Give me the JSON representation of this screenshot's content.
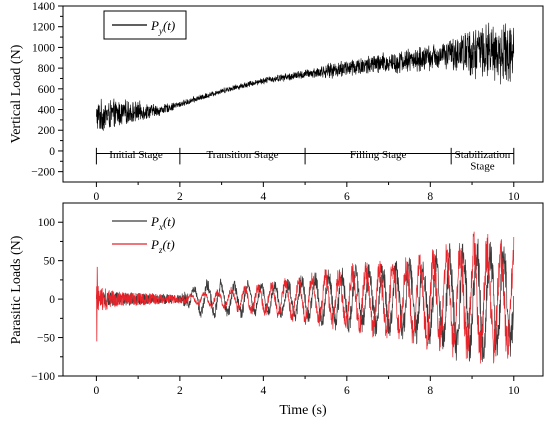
{
  "chart_data": [
    {
      "type": "line",
      "ylabel": "Vertical Load (N)",
      "xlim": [
        -0.8,
        10.7
      ],
      "ylim": [
        -300,
        1400
      ],
      "x_ticks": [
        0,
        2,
        4,
        6,
        8,
        10
      ],
      "y_ticks": [
        -200,
        0,
        200,
        400,
        600,
        800,
        1000,
        1200,
        1400
      ],
      "x_tick_labels": [
        "0",
        "2",
        "4",
        "6",
        "8",
        "10"
      ],
      "y_tick_labels": [
        "−200",
        "0",
        "200",
        "400",
        "600",
        "800",
        "1000",
        "1200",
        "1400"
      ],
      "legend": {
        "placement": "top-left",
        "entries": [
          {
            "base": "P",
            "sub": "y",
            "arg": "(t)",
            "color": "#000000"
          }
        ]
      },
      "stage_boundaries": [
        0,
        2,
        5,
        8.5,
        10
      ],
      "stages": [
        {
          "label": "Initial Stage",
          "x": 0.95,
          "y": -70
        },
        {
          "label": "Transition Stage",
          "x": 3.5,
          "y": -70
        },
        {
          "label": "Filling Stage",
          "x": 6.75,
          "y": -70
        },
        {
          "label": "Stabilization",
          "x": 9.25,
          "y": -70
        },
        {
          "label": "Stage",
          "x": 9.25,
          "y": -180
        }
      ],
      "series": [
        {
          "color": "#000000",
          "x_range": [
            0,
            10
          ],
          "envelope": [
            {
              "x": 0.0,
              "mean": 330,
              "amplitude": 180
            },
            {
              "x": 0.5,
              "mean": 360,
              "amplitude": 150
            },
            {
              "x": 1.0,
              "mean": 380,
              "amplitude": 110
            },
            {
              "x": 1.5,
              "mean": 390,
              "amplitude": 60
            },
            {
              "x": 2.0,
              "mean": 450,
              "amplitude": 35
            },
            {
              "x": 3.0,
              "mean": 580,
              "amplitude": 30
            },
            {
              "x": 4.0,
              "mean": 680,
              "amplitude": 35
            },
            {
              "x": 5.0,
              "mean": 740,
              "amplitude": 50
            },
            {
              "x": 6.0,
              "mean": 800,
              "amplitude": 100
            },
            {
              "x": 7.0,
              "mean": 850,
              "amplitude": 120
            },
            {
              "x": 8.0,
              "mean": 900,
              "amplitude": 140
            },
            {
              "x": 8.5,
              "mean": 940,
              "amplitude": 160
            },
            {
              "x": 9.0,
              "mean": 960,
              "amplitude": 280
            },
            {
              "x": 10.0,
              "mean": 960,
              "amplitude": 340
            }
          ]
        }
      ]
    },
    {
      "type": "line",
      "xlabel": "Time (s)",
      "ylabel": "Parasitic Loads (N)",
      "xlim": [
        -0.8,
        10.7
      ],
      "ylim": [
        -100,
        125
      ],
      "x_ticks": [
        0,
        2,
        4,
        6,
        8,
        10
      ],
      "y_ticks": [
        -100,
        -50,
        0,
        50,
        100
      ],
      "x_tick_labels": [
        "0",
        "2",
        "4",
        "6",
        "8",
        "10"
      ],
      "y_tick_labels": [
        "−100",
        "−50",
        "0",
        "50",
        "100"
      ],
      "legend": {
        "placement": "top-left",
        "entries": [
          {
            "base": "P",
            "sub": "x",
            "arg": "(t)",
            "color": "#3a3a3a"
          },
          {
            "base": "P",
            "sub": "z",
            "arg": "(t)",
            "color": "#e8232a"
          }
        ]
      },
      "series": [
        {
          "color": "#3a3a3a",
          "x_range": [
            0,
            10
          ],
          "envelope": [
            {
              "x": 0.0,
              "amplitude": 10
            },
            {
              "x": 2.0,
              "amplitude": 6
            },
            {
              "x": 2.6,
              "amplitude": 25
            },
            {
              "x": 4.0,
              "amplitude": 20
            },
            {
              "x": 6.0,
              "amplitude": 38
            },
            {
              "x": 8.0,
              "amplitude": 55
            },
            {
              "x": 9.0,
              "amplitude": 80
            },
            {
              "x": 10.0,
              "amplitude": 70
            }
          ]
        },
        {
          "color": "#e8232a",
          "x_range": [
            0,
            10
          ],
          "envelope": [
            {
              "x": 0.0,
              "amplitude": 18
            },
            {
              "x": 0.5,
              "amplitude": 10
            },
            {
              "x": 2.0,
              "amplitude": 5
            },
            {
              "x": 4.0,
              "amplitude": 20
            },
            {
              "x": 6.0,
              "amplitude": 40
            },
            {
              "x": 8.0,
              "amplitude": 58
            },
            {
              "x": 9.0,
              "amplitude": 78
            },
            {
              "x": 10.0,
              "amplitude": 75
            }
          ]
        }
      ]
    }
  ]
}
